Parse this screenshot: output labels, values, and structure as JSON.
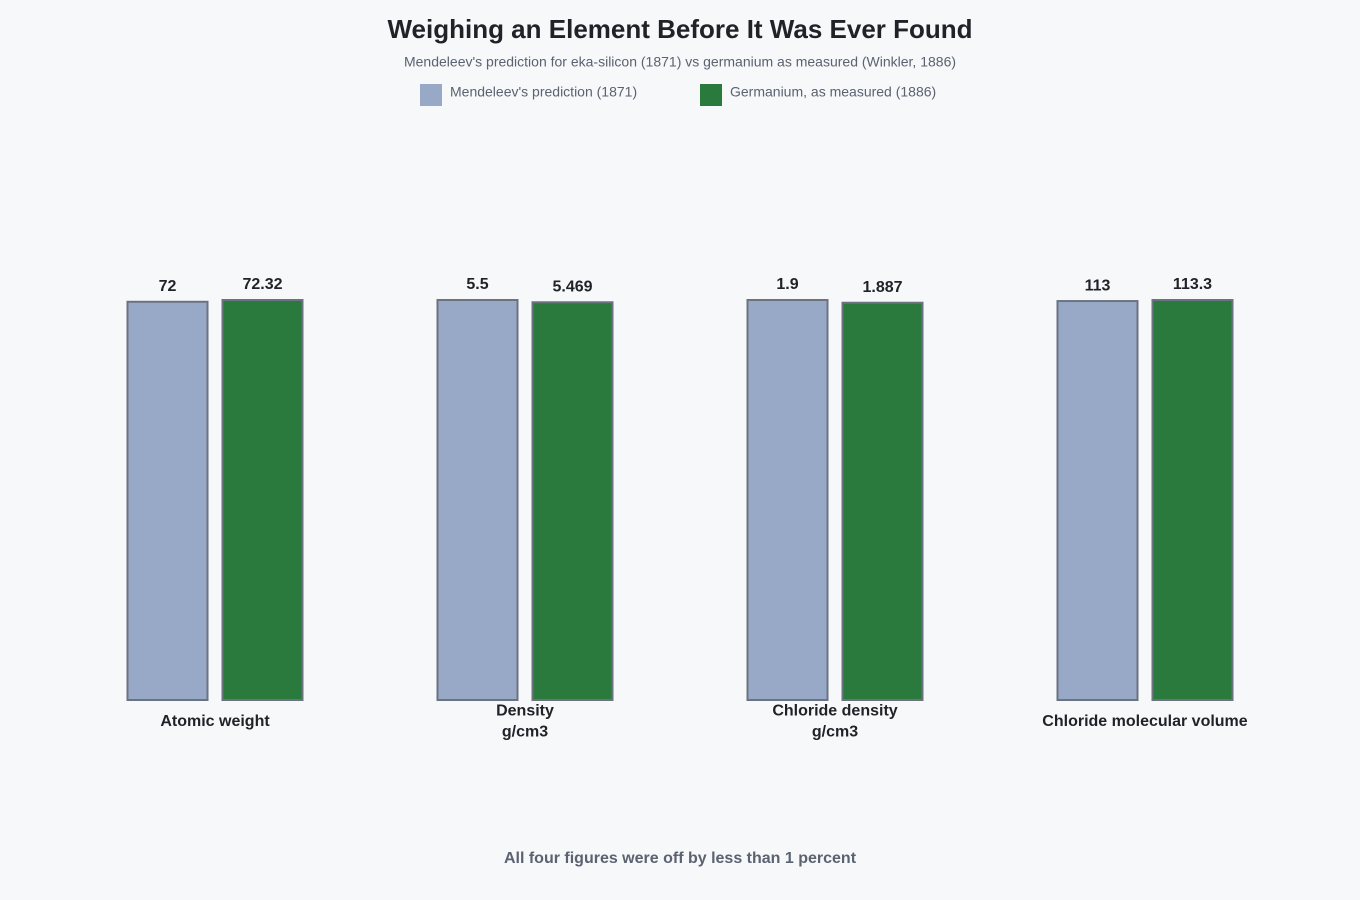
{
  "chart_data": {
    "type": "bar",
    "title": "Weighing an Element Before It Was Ever Found",
    "subtitle": "Mendeleev's prediction for eka-silicon (1871) vs germanium as measured (Winkler, 1886)",
    "categories": [
      [
        "Atomic weight"
      ],
      [
        "Density",
        "g/cm3"
      ],
      [
        "Chloride density",
        "g/cm3"
      ],
      [
        "Chloride molecular volume"
      ]
    ],
    "series": [
      {
        "name": "Mendeleev's prediction (1871)",
        "color": "#97a9c7",
        "values": [
          72,
          5.5,
          1.9,
          113
        ]
      },
      {
        "name": "Germanium, as measured (1886)",
        "color": "#2a7a3d",
        "values": [
          72.32,
          5.469,
          1.887,
          113.3
        ]
      }
    ],
    "note": "All four figures were off by less than 1 percent"
  }
}
